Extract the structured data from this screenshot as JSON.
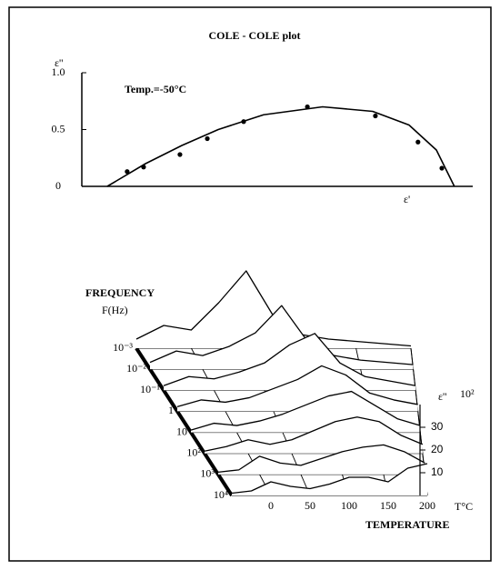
{
  "chart_data": [
    {
      "type": "scatter",
      "title": "COLE - COLE plot",
      "y_label": "ε''",
      "x_label": "ε'",
      "annotation": "Temp.=-50°C",
      "xlim": [
        0,
        10
      ],
      "ylim": [
        0,
        1.0
      ],
      "yticks": [
        0,
        0.5,
        {
          "value": 1,
          "label": "1.0"
        }
      ],
      "points": {
        "x": [
          1.16,
          1.58,
          2.51,
          3.21,
          4.14,
          5.77,
          7.51,
          8.6,
          9.21
        ],
        "y": [
          0.13,
          0.17,
          0.28,
          0.42,
          0.57,
          0.7,
          0.62,
          0.39,
          0.16
        ]
      },
      "curve": {
        "x": [
          0.65,
          1.63,
          2.56,
          3.49,
          4.65,
          6.16,
          7.44,
          8.37,
          9.07,
          9.53
        ],
        "y": [
          0,
          0.2,
          0.36,
          0.5,
          0.63,
          0.7,
          0.66,
          0.54,
          0.32,
          0
        ]
      }
    },
    {
      "type": "waterfall3d",
      "y_label": "FREQUENCY",
      "y_unit": "F(Hz)",
      "x_label": "TEMPERATURE",
      "x_unit": "T°C",
      "z_label": "ε''",
      "z_unit": "10²",
      "x": [
        -50,
        -25,
        0,
        25,
        50,
        75,
        100,
        125,
        150,
        175,
        200
      ],
      "xlim": [
        -50,
        200
      ],
      "xticks": [
        0,
        50,
        100,
        150,
        200
      ],
      "zlim": [
        0,
        40
      ],
      "zticks": [
        10,
        20,
        30
      ],
      "categories": [
        "10⁻³",
        "10⁻²",
        "10⁻¹",
        "1",
        "10",
        "10²",
        "10³",
        "10⁴"
      ],
      "values": [
        [
          4,
          10,
          8,
          20,
          34,
          14,
          6,
          4,
          3,
          2,
          1
        ],
        [
          3,
          8,
          6,
          10,
          16,
          28,
          12,
          6,
          4,
          3,
          2
        ],
        [
          2,
          6,
          5,
          8,
          12,
          20,
          25,
          12,
          6,
          4,
          2
        ],
        [
          2,
          5,
          4,
          6,
          10,
          14,
          20,
          16,
          8,
          5,
          3
        ],
        [
          1,
          4,
          3,
          5,
          8,
          12,
          16,
          18,
          12,
          6,
          3
        ],
        [
          1,
          3,
          6,
          4,
          6,
          10,
          14,
          16,
          14,
          8,
          4
        ],
        [
          1,
          2,
          8,
          5,
          4,
          7,
          10,
          12,
          13,
          10,
          5
        ],
        [
          1,
          2,
          6,
          4,
          3,
          5,
          8,
          8,
          6,
          12,
          14
        ]
      ]
    }
  ]
}
